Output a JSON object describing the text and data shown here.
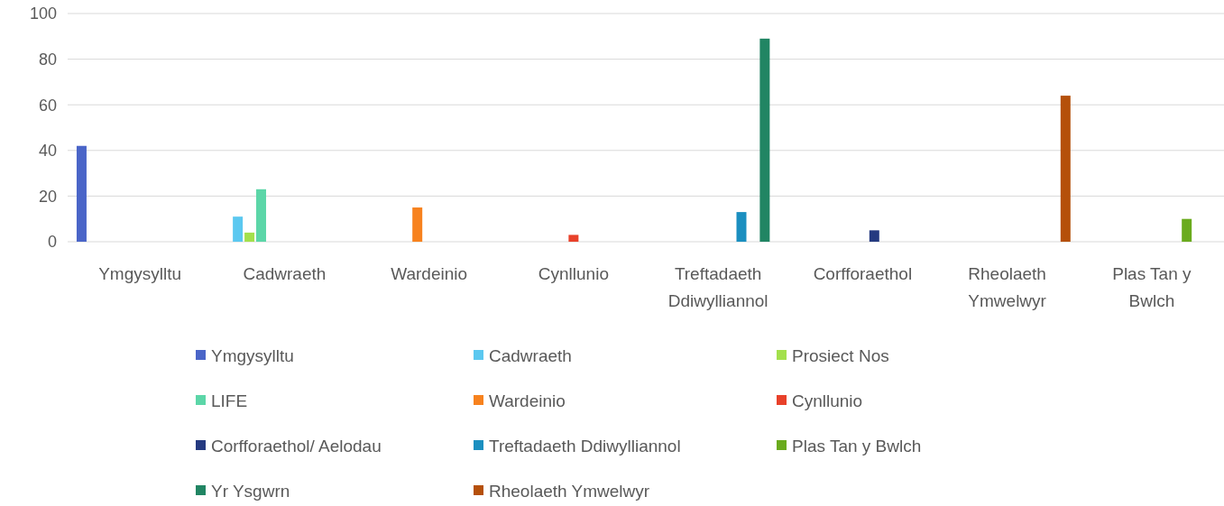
{
  "chart_data": {
    "type": "bar",
    "categories": [
      "Ymgysylltu",
      "Cadwraeth",
      "Wardeinio",
      "Cynllunio",
      "Treftadaeth Ddiwylliannol",
      "Corfforaethol",
      "Rheolaeth Ymwelwyr",
      "Plas Tan y Bwlch"
    ],
    "series": [
      {
        "name": "Ymgysylltu",
        "color": "#4a65c8",
        "values": [
          42,
          null,
          null,
          null,
          null,
          null,
          null,
          null
        ]
      },
      {
        "name": "Cadwraeth",
        "color": "#5bc8f0",
        "values": [
          null,
          11,
          null,
          null,
          null,
          null,
          null,
          null
        ]
      },
      {
        "name": "Prosiect Nos",
        "color": "#a3e04c",
        "values": [
          null,
          4,
          null,
          null,
          null,
          null,
          null,
          null
        ]
      },
      {
        "name": "LIFE",
        "color": "#5cd6a8",
        "values": [
          null,
          23,
          null,
          null,
          null,
          null,
          null,
          null
        ]
      },
      {
        "name": "Wardeinio",
        "color": "#f7821e",
        "values": [
          null,
          null,
          15,
          null,
          null,
          null,
          null,
          null
        ]
      },
      {
        "name": "Cynllunio",
        "color": "#e8412a",
        "values": [
          null,
          null,
          null,
          3,
          null,
          null,
          null,
          null
        ]
      },
      {
        "name": "Corfforaethol/ Aelodau",
        "color": "#253a80",
        "values": [
          null,
          null,
          null,
          null,
          null,
          5,
          null,
          null
        ]
      },
      {
        "name": "Treftadaeth Ddiwylliannol",
        "color": "#1b8fc0",
        "values": [
          null,
          null,
          null,
          null,
          13,
          null,
          null,
          null
        ]
      },
      {
        "name": "Plas Tan y Bwlch",
        "color": "#6aab1e",
        "values": [
          null,
          null,
          null,
          null,
          null,
          null,
          null,
          10
        ]
      },
      {
        "name": "Yr Ysgwrn",
        "color": "#218563",
        "values": [
          null,
          null,
          null,
          null,
          89,
          null,
          null,
          null
        ]
      },
      {
        "name": "Rheolaeth Ymwelwyr",
        "color": "#b5500a",
        "values": [
          null,
          null,
          null,
          null,
          null,
          null,
          64,
          null
        ]
      }
    ],
    "ylim": [
      0,
      100
    ],
    "yticks": [
      0,
      20,
      40,
      60,
      80,
      100
    ],
    "grid": "y",
    "legend": "bottom"
  }
}
